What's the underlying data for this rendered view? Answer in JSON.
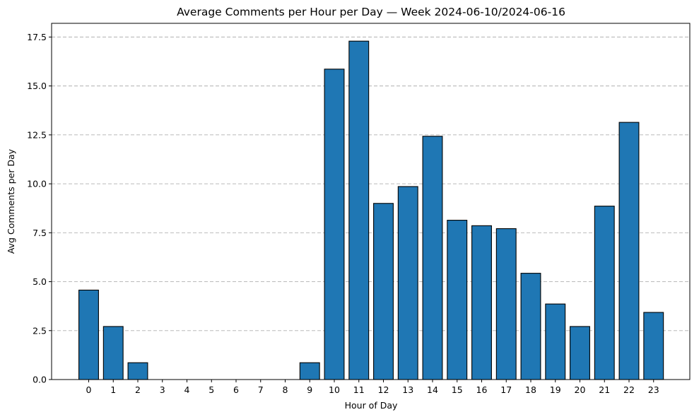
{
  "chart_data": {
    "type": "bar",
    "title": "Average Comments per Hour per Day — Week 2024-06-10/2024-06-16",
    "xlabel": "Hour of Day",
    "ylabel": "Avg Comments per Day",
    "categories": [
      "0",
      "1",
      "2",
      "3",
      "4",
      "5",
      "6",
      "7",
      "8",
      "9",
      "10",
      "11",
      "12",
      "13",
      "14",
      "15",
      "16",
      "17",
      "18",
      "19",
      "20",
      "21",
      "22",
      "23"
    ],
    "values": [
      4.57,
      2.71,
      0.86,
      0,
      0,
      0,
      0,
      0,
      0,
      0.86,
      15.86,
      17.29,
      9.0,
      9.86,
      12.43,
      8.14,
      7.86,
      7.71,
      5.43,
      3.86,
      2.71,
      8.86,
      13.14,
      3.43
    ],
    "ylim": [
      0,
      18.2
    ],
    "yticks": [
      "0.0",
      "2.5",
      "5.0",
      "7.5",
      "10.0",
      "12.5",
      "15.0",
      "17.5"
    ],
    "ytick_values": [
      0,
      2.5,
      5,
      7.5,
      10,
      12.5,
      15,
      17.5
    ],
    "grid": "y-dashed",
    "bar_color": "#1f77b4",
    "edge_color": "#000000"
  }
}
